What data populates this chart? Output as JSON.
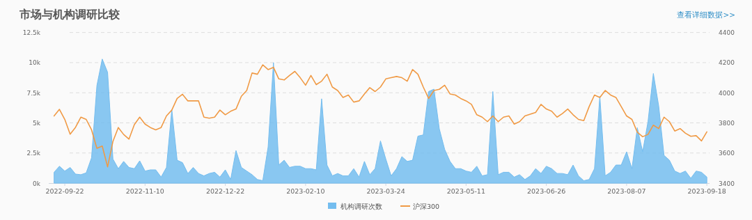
{
  "chart_data": {
    "type": "line",
    "title": "市场与机构调研比较",
    "annotations": [
      "查看详细数据>>"
    ],
    "categories": [
      null,
      null,
      "2022-09-22",
      null,
      null,
      null,
      null,
      null,
      null,
      null,
      null,
      null,
      null,
      null,
      null,
      null,
      null,
      "2022-11-10",
      null,
      null,
      null,
      null,
      null,
      null,
      null,
      null,
      null,
      null,
      null,
      null,
      null,
      null,
      "2022-12-22",
      null,
      null,
      null,
      null,
      null,
      null,
      null,
      null,
      null,
      null,
      null,
      null,
      null,
      null,
      "2023-02-10",
      null,
      null,
      null,
      null,
      null,
      null,
      null,
      null,
      null,
      null,
      null,
      null,
      null,
      null,
      "2023-03-24",
      null,
      null,
      null,
      null,
      null,
      null,
      null,
      null,
      null,
      null,
      null,
      null,
      null,
      null,
      "2023-05-11",
      null,
      null,
      null,
      null,
      null,
      null,
      null,
      null,
      null,
      null,
      null,
      null,
      null,
      null,
      "2023-06-26",
      null,
      null,
      null,
      null,
      null,
      null,
      null,
      null,
      null,
      null,
      null,
      null,
      null,
      null,
      "2023-08-07",
      null,
      null,
      null,
      null,
      null,
      null,
      null,
      null,
      null,
      null,
      null,
      null,
      null,
      null,
      "2023-09-18"
    ],
    "series": [
      {
        "name": "机构调研次数",
        "type": "area",
        "color": "#74bdef",
        "values": [
          900,
          1400,
          1000,
          1300,
          750,
          700,
          850,
          2100,
          8100,
          10300,
          9200,
          2000,
          1200,
          1800,
          1300,
          1200,
          1850,
          1000,
          1100,
          1100,
          500,
          1300,
          6100,
          1900,
          1700,
          800,
          1300,
          800,
          600,
          800,
          900,
          500,
          1100,
          300,
          2700,
          1300,
          1000,
          700,
          300,
          200,
          3000,
          10000,
          1500,
          1900,
          1300,
          1400,
          1400,
          1200,
          1200,
          1100,
          7000,
          1500,
          600,
          800,
          600,
          600,
          1200,
          500,
          1800,
          700,
          1200,
          3500,
          2000,
          600,
          1200,
          2200,
          1800,
          1900,
          3900,
          4000,
          7600,
          7800,
          4500,
          2800,
          1800,
          1200,
          1200,
          1000,
          900,
          1400,
          600,
          700,
          7600,
          700,
          900,
          900,
          500,
          700,
          300,
          600,
          1200,
          800,
          1400,
          1200,
          800,
          800,
          700,
          1500,
          600,
          200,
          300,
          1200,
          7200,
          600,
          900,
          1500,
          1500,
          2600,
          1200,
          4600,
          2600,
          5100,
          9100,
          6400,
          2300,
          1900,
          1000,
          800,
          1000,
          400,
          1000,
          900,
          500
        ]
      },
      {
        "name": "沪深300",
        "color": "#f09a45",
        "axis": "y2",
        "values": [
          3846,
          3890,
          3823,
          3725,
          3770,
          3838,
          3823,
          3754,
          3631,
          3646,
          3508,
          3677,
          3769,
          3723,
          3692,
          3788,
          3838,
          3792,
          3769,
          3754,
          3769,
          3846,
          3885,
          3962,
          3990,
          3946,
          3946,
          3946,
          3838,
          3831,
          3838,
          3885,
          3854,
          3877,
          3892,
          3977,
          4015,
          4131,
          4123,
          4185,
          4154,
          4169,
          4092,
          4085,
          4115,
          4142,
          4100,
          4050,
          4115,
          4054,
          4077,
          4123,
          4038,
          4015,
          3969,
          3985,
          3938,
          3946,
          3992,
          4034,
          4008,
          4038,
          4092,
          4100,
          4108,
          4100,
          4077,
          4154,
          4123,
          4038,
          3962,
          4015,
          4023,
          4050,
          3992,
          3985,
          3962,
          3946,
          3923,
          3854,
          3838,
          3808,
          3846,
          3808,
          3838,
          3846,
          3792,
          3808,
          3846,
          3858,
          3869,
          3923,
          3892,
          3877,
          3838,
          3862,
          3892,
          3854,
          3823,
          3815,
          3908,
          3985,
          3969,
          4015,
          3985,
          3969,
          3908,
          3846,
          3823,
          3738,
          3708,
          3723,
          3785,
          3762,
          3838,
          3808,
          3746,
          3762,
          3731,
          3711,
          3715,
          3680,
          3740
        ]
      }
    ],
    "ylim": [
      0,
      12500
    ],
    "yticks": [
      {
        "value": 0,
        "label": "0k"
      },
      {
        "value": 2500,
        "label": "2.5k"
      },
      {
        "value": 5000,
        "label": "5k"
      },
      {
        "value": 7500,
        "label": "7.5k"
      },
      {
        "value": 10000,
        "label": "10k"
      },
      {
        "value": 12500,
        "label": "12.5k"
      }
    ],
    "y2lim": [
      3400,
      4400
    ],
    "y2ticks": [
      3400,
      3600,
      3800,
      4000,
      4200,
      4400
    ],
    "grid": "y",
    "legend": "bottom"
  }
}
